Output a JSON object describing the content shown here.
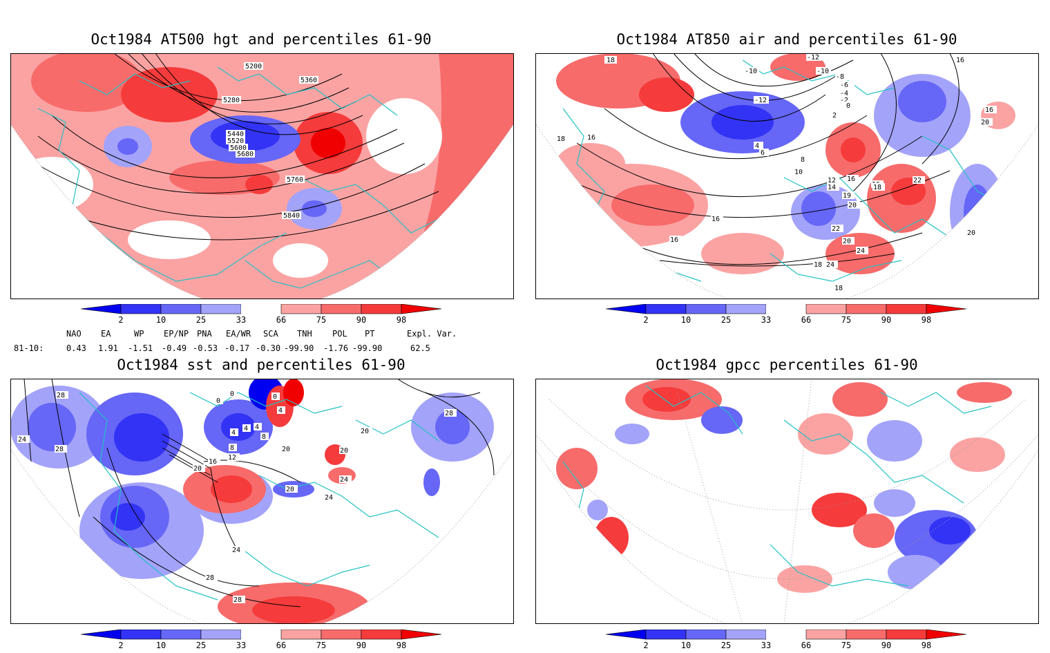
{
  "panels": [
    {
      "id": "hgt",
      "title": "Oct1984 AT500 hgt and percentiles 61-90",
      "contour_labels": [
        "5200",
        "5360",
        "5280",
        "5440",
        "5520",
        "5600",
        "5680",
        "5760",
        "5840"
      ]
    },
    {
      "id": "air",
      "title": "Oct1984 AT850 air and percentiles 61-90",
      "contour_labels": [
        "18",
        "-12",
        "-10",
        "-10",
        "-8",
        "-6",
        "-4",
        "-2",
        "0",
        "-12",
        "2",
        "4",
        "6",
        "8",
        "10",
        "12",
        "14",
        "16",
        "16",
        "18",
        "19",
        "20",
        "20",
        "22",
        "22",
        "24",
        "24",
        "20",
        "18",
        "18",
        "16",
        "16",
        "16",
        "16",
        "16",
        "18",
        "20"
      ]
    },
    {
      "id": "sst",
      "title": "Oct1984 sst and percentiles 61-90",
      "contour_labels": [
        "24",
        "28",
        "28",
        "28",
        "0",
        "0",
        "0",
        "4",
        "4",
        "4",
        "4",
        "8",
        "8",
        "12",
        "16",
        "20",
        "20",
        "20",
        "24",
        "24",
        "24",
        "28",
        "28",
        "20",
        "20"
      ]
    },
    {
      "id": "gpcc",
      "title": "Oct1984 gpcc percentiles 61-90",
      "contour_labels": []
    }
  ],
  "colorbar": {
    "ticks": [
      "2",
      "10",
      "25",
      "33",
      "66",
      "75",
      "90",
      "98"
    ],
    "colors": [
      "#0000f0",
      "#3333f5",
      "#6666f7",
      "#a3a3fa",
      "#ffffff",
      "#fba3a3",
      "#f76b6b",
      "#f53b3b",
      "#f00000"
    ]
  },
  "indices": {
    "header": [
      "NAO",
      "EA",
      "WP",
      "EP/NP",
      "PNA",
      "EA/WR",
      "SCA",
      "TNH",
      "POL",
      "PT",
      "Expl. Var."
    ],
    "row_label": "81-10:",
    "values": [
      "0.43",
      "1.91",
      "-1.51",
      "-0.49",
      "-0.53",
      "-0.17",
      "-0.30",
      "-99.90",
      "-1.76",
      "-99.90",
      "62.5"
    ]
  },
  "colors": {
    "coast": "#22c1c4",
    "frame": "#000000"
  }
}
